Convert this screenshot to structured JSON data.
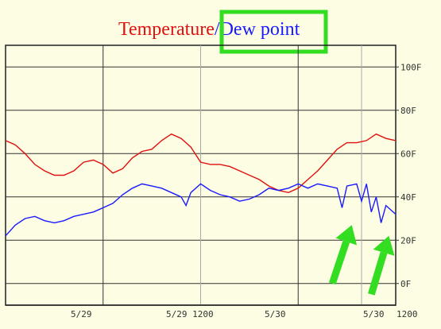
{
  "chart_data": {
    "type": "line",
    "title_parts": [
      {
        "text": "Temperature",
        "color": "#e01010"
      },
      {
        "text": "/",
        "color": "#1a1aff"
      },
      {
        "text": "Dew point",
        "color": "#1a1aff"
      }
    ],
    "x_tick_labels": [
      "5/29",
      "5/29 1200",
      "5/30",
      "5/30 1200"
    ],
    "y_tick_labels": [
      "100F",
      "80F",
      "60F",
      "40F",
      "20F",
      "0F"
    ],
    "ylim": [
      -10,
      110
    ],
    "xlim": [
      0,
      40
    ],
    "grid": true,
    "highlight_color": "#33dd22",
    "series": [
      {
        "color": "#e01010",
        "points": [
          [
            0,
            66
          ],
          [
            1,
            64
          ],
          [
            2,
            60
          ],
          [
            3,
            55
          ],
          [
            4,
            52
          ],
          [
            5,
            50
          ],
          [
            6,
            50
          ],
          [
            7,
            52
          ],
          [
            8,
            56
          ],
          [
            9,
            57
          ],
          [
            10,
            55
          ],
          [
            11,
            51
          ],
          [
            12,
            53
          ],
          [
            13,
            58
          ],
          [
            14,
            61
          ],
          [
            15,
            62
          ],
          [
            16,
            66
          ],
          [
            17,
            69
          ],
          [
            18,
            67
          ],
          [
            19,
            63
          ],
          [
            20,
            56
          ],
          [
            21,
            55
          ],
          [
            22,
            55
          ],
          [
            23,
            54
          ],
          [
            24,
            52
          ],
          [
            25,
            50
          ],
          [
            26,
            48
          ],
          [
            27,
            45
          ],
          [
            28,
            43
          ],
          [
            29,
            42
          ],
          [
            30,
            44
          ],
          [
            31,
            48
          ],
          [
            32,
            52
          ],
          [
            33,
            57
          ],
          [
            34,
            62
          ],
          [
            35,
            65
          ],
          [
            36,
            65
          ],
          [
            37,
            66
          ],
          [
            38,
            69
          ],
          [
            39,
            67
          ],
          [
            40,
            66
          ]
        ]
      },
      {
        "color": "#1a1aff",
        "points": [
          [
            0,
            22
          ],
          [
            1,
            27
          ],
          [
            2,
            30
          ],
          [
            3,
            31
          ],
          [
            4,
            29
          ],
          [
            5,
            28
          ],
          [
            6,
            29
          ],
          [
            7,
            31
          ],
          [
            8,
            32
          ],
          [
            9,
            33
          ],
          [
            10,
            35
          ],
          [
            11,
            37
          ],
          [
            12,
            41
          ],
          [
            13,
            44
          ],
          [
            14,
            46
          ],
          [
            15,
            45
          ],
          [
            16,
            44
          ],
          [
            17,
            42
          ],
          [
            18,
            40
          ],
          [
            18.5,
            36
          ],
          [
            19,
            42
          ],
          [
            20,
            46
          ],
          [
            21,
            43
          ],
          [
            22,
            41
          ],
          [
            23,
            40
          ],
          [
            24,
            38
          ],
          [
            25,
            39
          ],
          [
            26,
            41
          ],
          [
            27,
            44
          ],
          [
            28,
            43
          ],
          [
            29,
            44
          ],
          [
            30,
            46
          ],
          [
            31,
            44
          ],
          [
            32,
            46
          ],
          [
            33,
            45
          ],
          [
            34,
            44
          ],
          [
            34.5,
            35
          ],
          [
            35,
            45
          ],
          [
            36,
            46
          ],
          [
            36.5,
            38
          ],
          [
            37,
            46
          ],
          [
            37.5,
            33
          ],
          [
            38,
            40
          ],
          [
            38.5,
            28
          ],
          [
            39,
            36
          ],
          [
            40,
            32
          ]
        ]
      }
    ],
    "arrows": [
      {
        "from": [
          33.5,
          0
        ],
        "to": [
          35.5,
          27
        ]
      },
      {
        "from": [
          37.5,
          -5
        ],
        "to": [
          39.3,
          22
        ]
      }
    ]
  }
}
